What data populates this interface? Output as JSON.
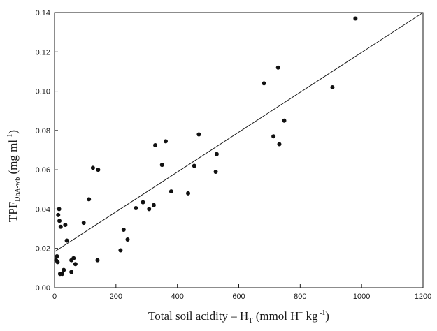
{
  "chart_data": {
    "type": "scatter",
    "title": "",
    "xlabel": {
      "main": "Total soil acidity – H",
      "sub": "T",
      "unit_pre": " (mmol H",
      "sup": "+",
      "unit_post": " kg",
      "sup2": " -1",
      "unit_end": ")"
    },
    "ylabel": {
      "main": "TPF",
      "sub": "DhA-wb",
      "unit_pre": " (mg ml",
      "sup": "-1",
      "unit_end": ")"
    },
    "xlim": [
      0,
      1200
    ],
    "ylim": [
      0,
      0.14
    ],
    "xticks": [
      0,
      200,
      400,
      600,
      800,
      1000,
      1200
    ],
    "xtick_labels": [
      "0",
      "200",
      "400",
      "600",
      "800",
      "1000",
      "1200"
    ],
    "yticks": [
      0,
      0.02,
      0.04,
      0.06,
      0.08,
      0.1,
      0.12,
      0.14
    ],
    "ytick_labels": [
      "0.00",
      "0.02",
      "0.04",
      "0.06",
      "0.08",
      "0.10",
      "0.12",
      "0.14"
    ],
    "grid": false,
    "legend": "none",
    "points": [
      {
        "x": 5,
        "y": 0.014
      },
      {
        "x": 8,
        "y": 0.016
      },
      {
        "x": 10,
        "y": 0.013
      },
      {
        "x": 12,
        "y": 0.037
      },
      {
        "x": 15,
        "y": 0.04
      },
      {
        "x": 16,
        "y": 0.034
      },
      {
        "x": 20,
        "y": 0.031
      },
      {
        "x": 18,
        "y": 0.007
      },
      {
        "x": 25,
        "y": 0.007
      },
      {
        "x": 30,
        "y": 0.009
      },
      {
        "x": 35,
        "y": 0.032
      },
      {
        "x": 40,
        "y": 0.024
      },
      {
        "x": 55,
        "y": 0.008
      },
      {
        "x": 55,
        "y": 0.014
      },
      {
        "x": 62,
        "y": 0.015
      },
      {
        "x": 68,
        "y": 0.012
      },
      {
        "x": 95,
        "y": 0.033
      },
      {
        "x": 112,
        "y": 0.045
      },
      {
        "x": 125,
        "y": 0.061
      },
      {
        "x": 140,
        "y": 0.014
      },
      {
        "x": 142,
        "y": 0.06
      },
      {
        "x": 215,
        "y": 0.019
      },
      {
        "x": 225,
        "y": 0.0295
      },
      {
        "x": 238,
        "y": 0.0245
      },
      {
        "x": 265,
        "y": 0.0405
      },
      {
        "x": 288,
        "y": 0.0435
      },
      {
        "x": 308,
        "y": 0.04
      },
      {
        "x": 323,
        "y": 0.042
      },
      {
        "x": 328,
        "y": 0.0725
      },
      {
        "x": 350,
        "y": 0.0625
      },
      {
        "x": 362,
        "y": 0.0745
      },
      {
        "x": 380,
        "y": 0.049
      },
      {
        "x": 435,
        "y": 0.048
      },
      {
        "x": 455,
        "y": 0.062
      },
      {
        "x": 470,
        "y": 0.078
      },
      {
        "x": 525,
        "y": 0.059
      },
      {
        "x": 528,
        "y": 0.068
      },
      {
        "x": 682,
        "y": 0.104
      },
      {
        "x": 713,
        "y": 0.077
      },
      {
        "x": 728,
        "y": 0.112
      },
      {
        "x": 732,
        "y": 0.073
      },
      {
        "x": 748,
        "y": 0.085
      },
      {
        "x": 905,
        "y": 0.102
      },
      {
        "x": 980,
        "y": 0.137
      }
    ],
    "fit_line": {
      "x": [
        0,
        1200
      ],
      "y": [
        0.0183,
        0.14
      ]
    }
  }
}
